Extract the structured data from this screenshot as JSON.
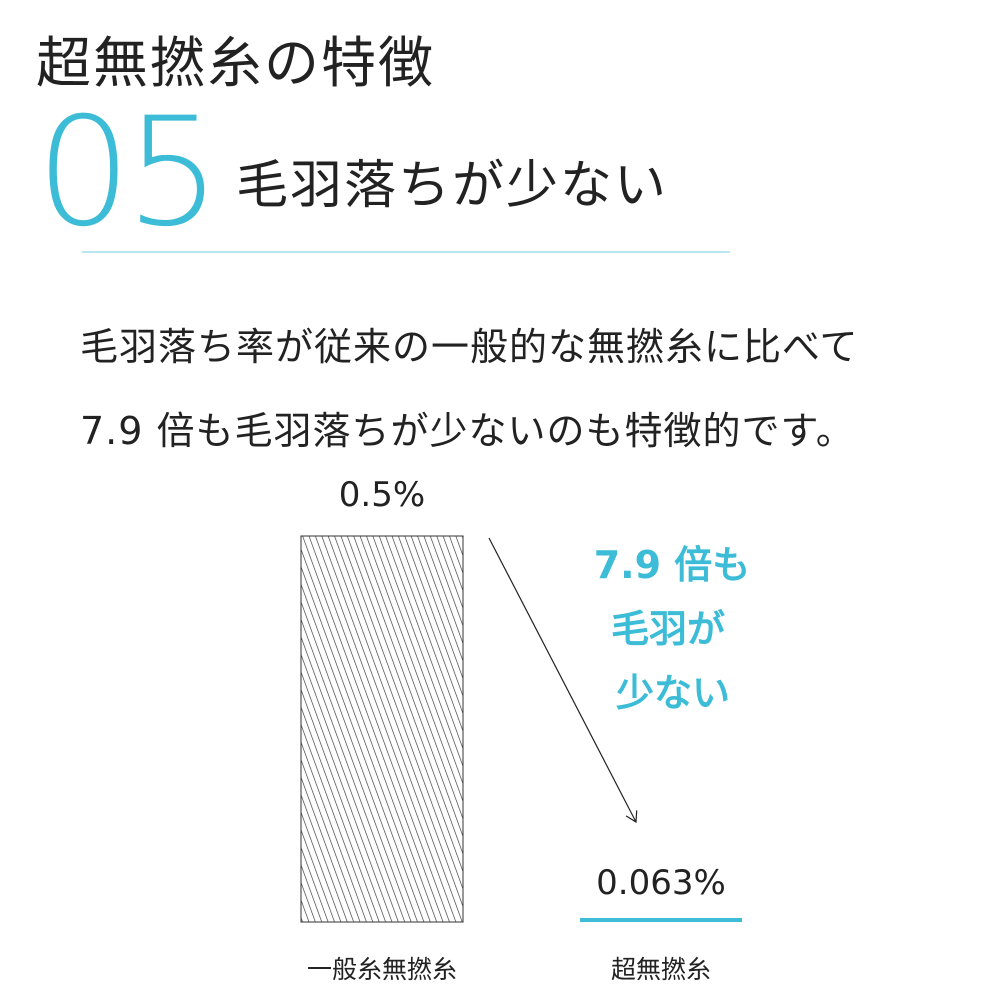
{
  "header": {
    "title": "超無撚糸の特徴",
    "number": "05",
    "subtitle": "毛羽落ちが少ない"
  },
  "description": {
    "line1": "毛羽落ち率が従来の一般的な無撚糸に比べて",
    "line2": "7.9 倍も毛羽落ちが少ないのも特徴的です。"
  },
  "callout": {
    "line1": "7.9 倍も",
    "line2": "毛羽が",
    "line3": "少ない"
  },
  "colors": {
    "accent": "#3cbcd6",
    "text": "#222222",
    "hatch": "#333333"
  },
  "chart_data": {
    "type": "bar",
    "categories": [
      "一般糸無撚糸",
      "超無撚糸"
    ],
    "values": [
      0.5,
      0.063
    ],
    "data_labels": [
      "0.5%",
      "0.063%"
    ],
    "unit": "%",
    "ylim": [
      0,
      0.5
    ],
    "title": "",
    "xlabel": "",
    "ylabel": "",
    "grid": false,
    "legend": "none",
    "styles": [
      "diagonal-hatch",
      "solid-accent"
    ]
  }
}
